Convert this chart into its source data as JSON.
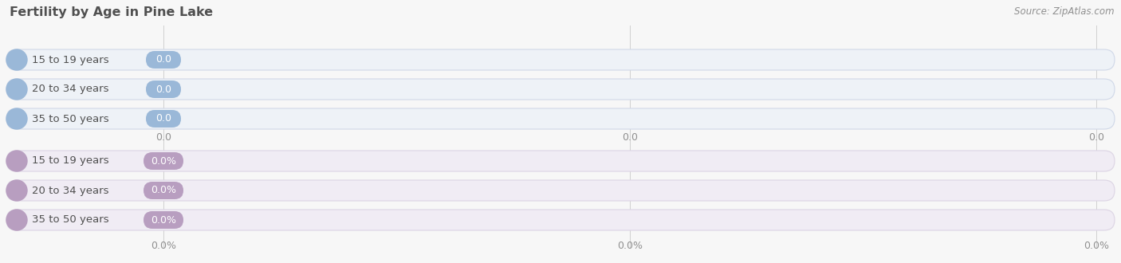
{
  "title": "Fertility by Age in Pine Lake",
  "source": "Source: ZipAtlas.com",
  "top_categories": [
    "15 to 19 years",
    "20 to 34 years",
    "35 to 50 years"
  ],
  "top_values": [
    "0.0",
    "0.0",
    "0.0"
  ],
  "bottom_categories": [
    "15 to 19 years",
    "20 to 34 years",
    "35 to 50 years"
  ],
  "bottom_values": [
    "0.0%",
    "0.0%",
    "0.0%"
  ],
  "top_bar_color": "#9ab8d8",
  "bottom_bar_color": "#b89ec0",
  "bar_bg_color": "#f0f0f0",
  "bar_border_color": "#d8d8d8",
  "bg_color": "#f7f7f7",
  "title_color": "#505050",
  "source_color": "#909090",
  "tick_color": "#909090",
  "grid_color": "#d0d0d0",
  "top_tick_labels": [
    "0.0",
    "0.0",
    "0.0"
  ],
  "bottom_tick_labels": [
    "0.0%",
    "0.0%",
    "0.0%"
  ]
}
